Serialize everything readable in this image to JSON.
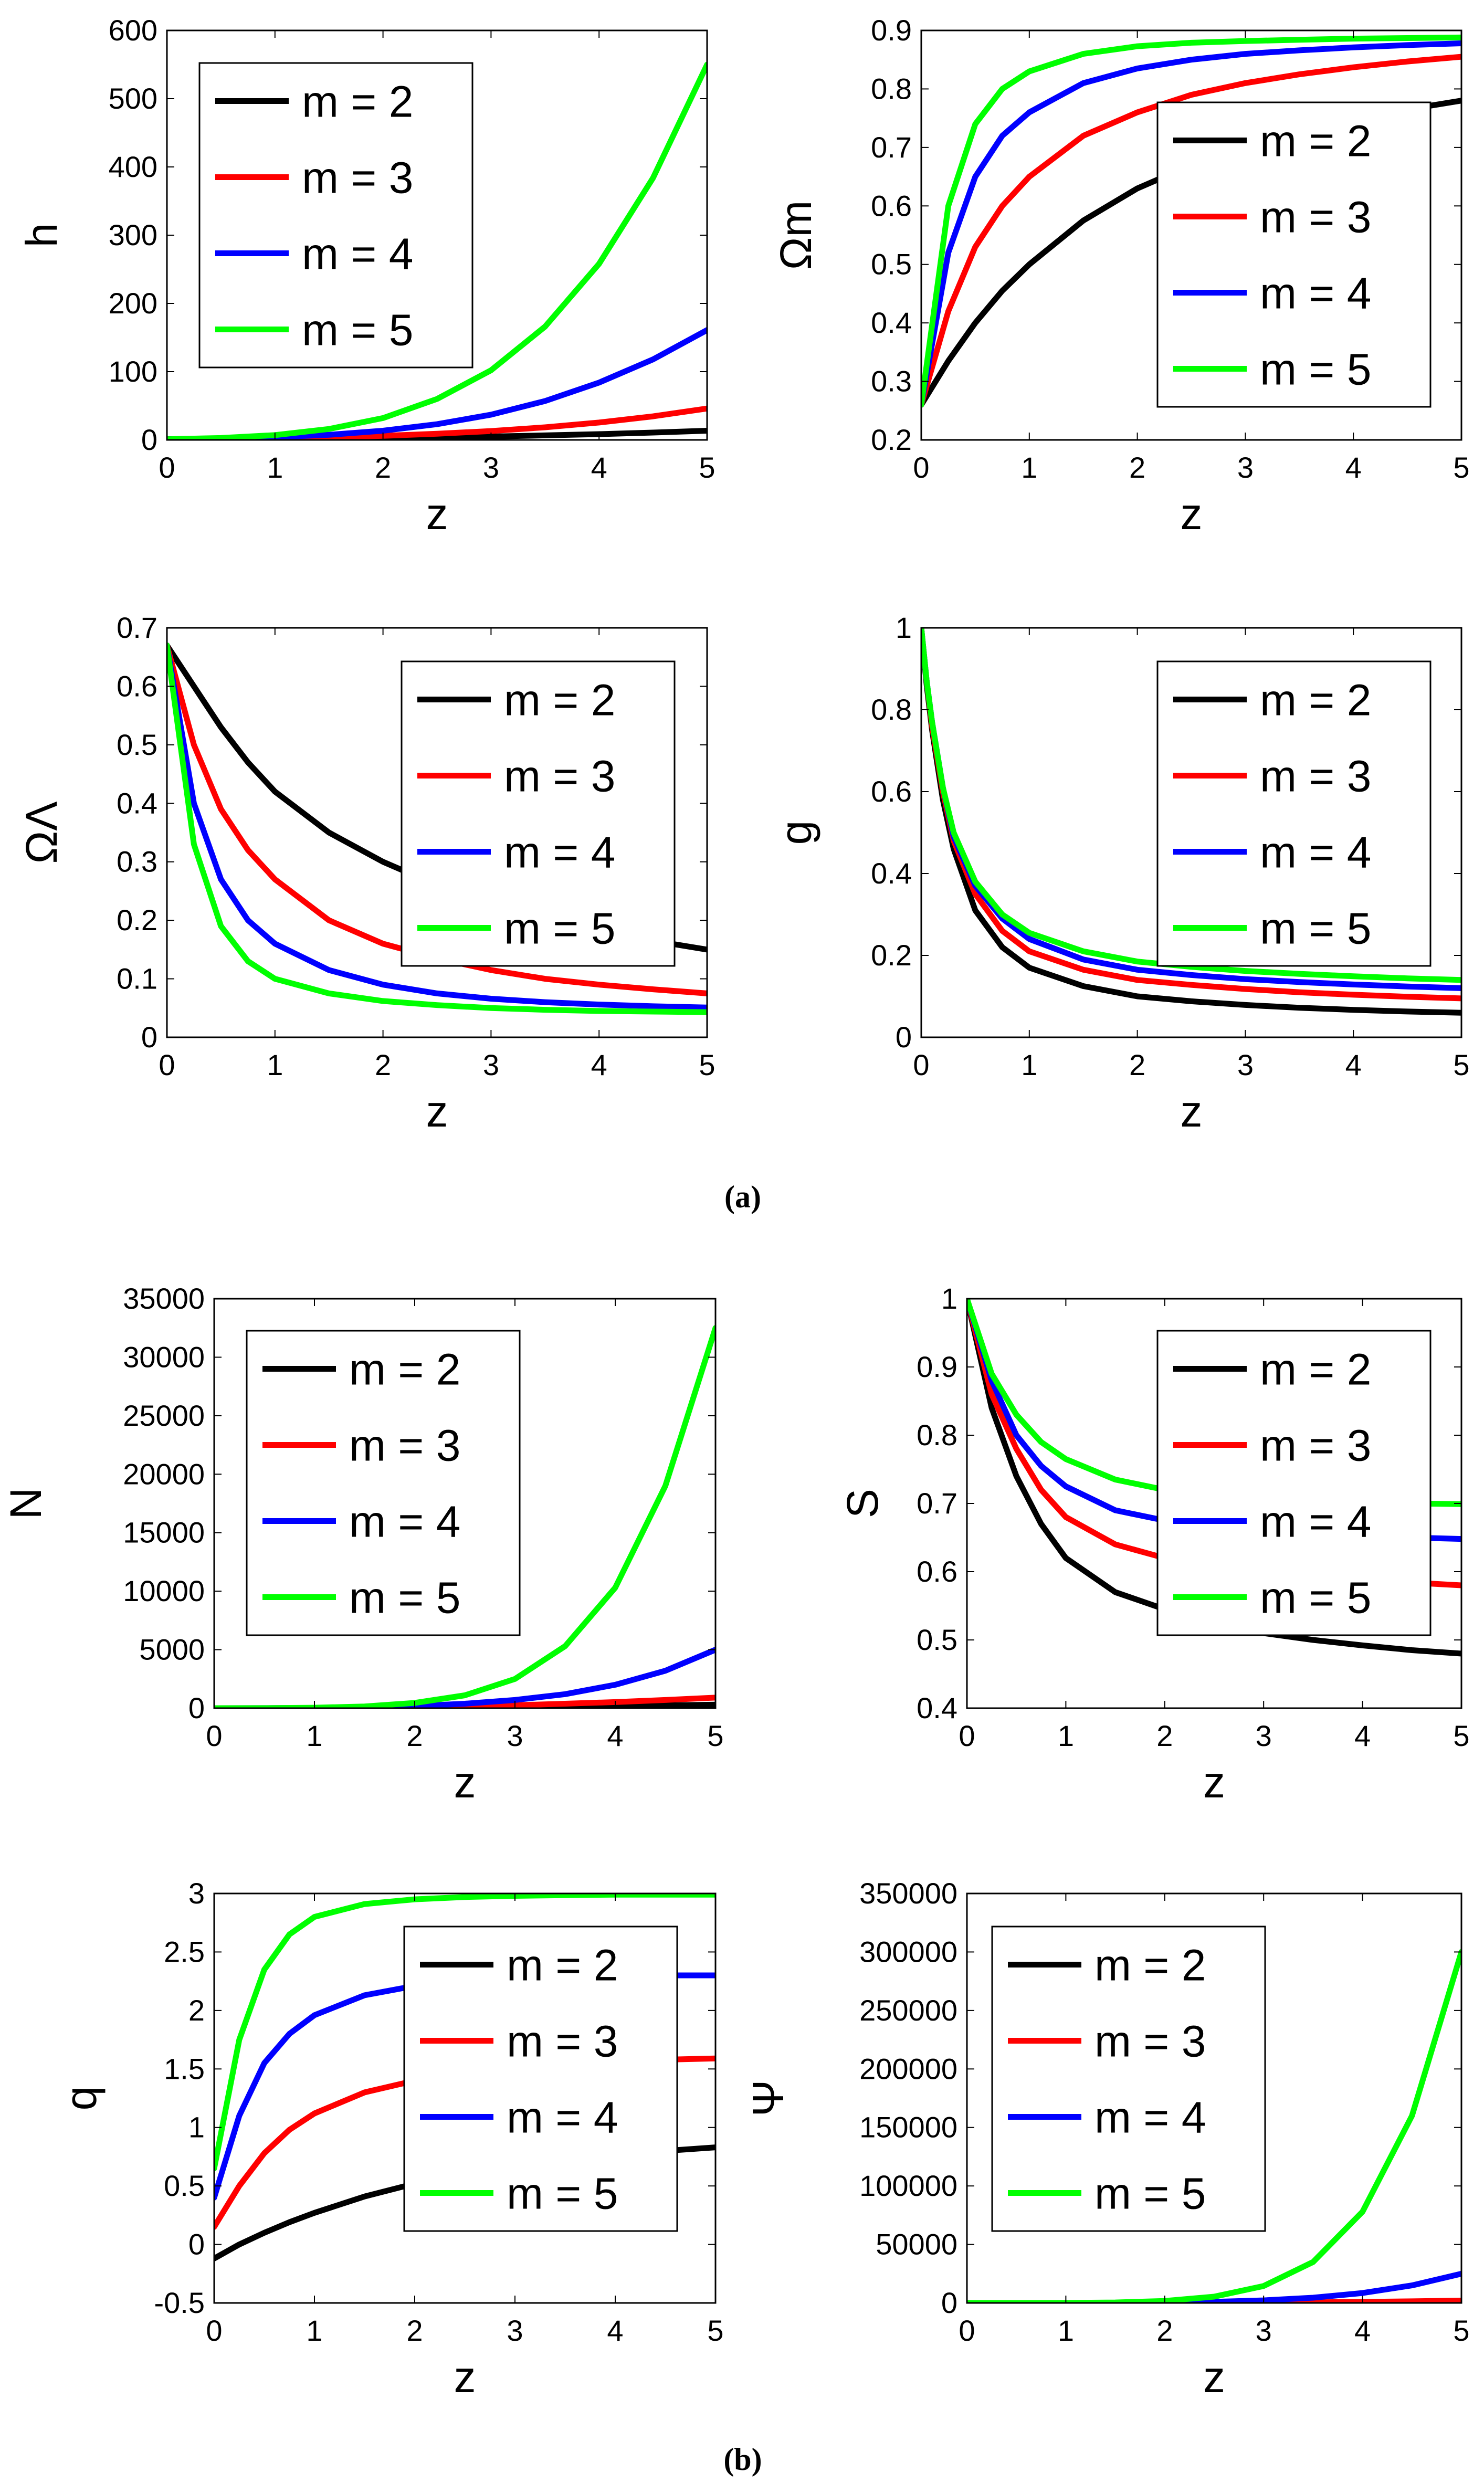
{
  "figure": {
    "panel_a_caption": "(a)",
    "panel_b_caption": "(b)"
  },
  "series_colors": {
    "m = 2": "#000000",
    "m = 3": "#ff0000",
    "m = 4": "#0000ff",
    "m = 5": "#00ff00"
  },
  "chart_data": [
    {
      "id": "h",
      "type": "line",
      "panel": "a",
      "ylabel": "h",
      "xlabel": "z",
      "xlim": [
        0,
        5
      ],
      "ylim": [
        0,
        600
      ],
      "xticks": [
        0,
        1,
        2,
        3,
        4,
        5
      ],
      "yticks": [
        0,
        100,
        200,
        300,
        400,
        500,
        600
      ],
      "legend_position": "top-left",
      "x": [
        0,
        0.5,
        1,
        1.5,
        2,
        2.5,
        3,
        3.5,
        4,
        4.5,
        5
      ],
      "series": [
        {
          "name": "m = 2",
          "values": [
            1,
            1.2,
            1.5,
            2,
            2.8,
            3.8,
            5,
            6.6,
            8.5,
            10.8,
            13.5
          ]
        },
        {
          "name": "m = 3",
          "values": [
            1,
            1.5,
            2.4,
            3.8,
            6,
            9,
            13,
            18.5,
            25.5,
            34.5,
            46
          ]
        },
        {
          "name": "m = 4",
          "values": [
            1,
            2,
            4,
            7.5,
            13.5,
            23,
            37,
            57,
            84,
            118,
            161
          ]
        },
        {
          "name": "m = 5",
          "values": [
            1,
            2.8,
            7,
            16,
            32,
            60,
            102,
            166,
            258,
            384,
            550
          ]
        }
      ]
    },
    {
      "id": "omega_m",
      "type": "line",
      "panel": "a",
      "ylabel": "Ωm",
      "xlabel": "z",
      "xlim": [
        0,
        5
      ],
      "ylim": [
        0.2,
        0.9
      ],
      "xticks": [
        0,
        1,
        2,
        3,
        4,
        5
      ],
      "yticks": [
        0.2,
        0.3,
        0.4,
        0.5,
        0.6,
        0.7,
        0.8,
        0.9
      ],
      "legend_position": "bottom-right",
      "x": [
        0,
        0.25,
        0.5,
        0.75,
        1,
        1.5,
        2,
        2.5,
        3,
        3.5,
        4,
        4.5,
        5
      ],
      "series": [
        {
          "name": "m = 2",
          "values": [
            0.26,
            0.335,
            0.4,
            0.455,
            0.5,
            0.575,
            0.63,
            0.67,
            0.7,
            0.725,
            0.745,
            0.765,
            0.78
          ]
        },
        {
          "name": "m = 3",
          "values": [
            0.26,
            0.42,
            0.53,
            0.6,
            0.65,
            0.72,
            0.76,
            0.79,
            0.81,
            0.825,
            0.837,
            0.847,
            0.855
          ]
        },
        {
          "name": "m = 4",
          "values": [
            0.26,
            0.52,
            0.65,
            0.72,
            0.76,
            0.81,
            0.835,
            0.85,
            0.86,
            0.866,
            0.871,
            0.875,
            0.878
          ]
        },
        {
          "name": "m = 5",
          "values": [
            0.26,
            0.6,
            0.74,
            0.8,
            0.83,
            0.86,
            0.873,
            0.879,
            0.882,
            0.884,
            0.886,
            0.887,
            0.888
          ]
        }
      ]
    },
    {
      "id": "omega_lambda",
      "type": "line",
      "panel": "a",
      "ylabel": "ΩΛ",
      "xlabel": "z",
      "xlim": [
        0,
        5
      ],
      "ylim": [
        0,
        0.7
      ],
      "xticks": [
        0,
        1,
        2,
        3,
        4,
        5
      ],
      "yticks": [
        0,
        0.1,
        0.2,
        0.3,
        0.4,
        0.5,
        0.6,
        0.7
      ],
      "legend_position": "top-right",
      "x": [
        0,
        0.25,
        0.5,
        0.75,
        1,
        1.5,
        2,
        2.5,
        3,
        3.5,
        4,
        4.5,
        5
      ],
      "series": [
        {
          "name": "m = 2",
          "values": [
            0.67,
            0.6,
            0.53,
            0.47,
            0.42,
            0.35,
            0.3,
            0.26,
            0.23,
            0.205,
            0.185,
            0.165,
            0.15
          ]
        },
        {
          "name": "m = 3",
          "values": [
            0.67,
            0.5,
            0.39,
            0.32,
            0.27,
            0.2,
            0.16,
            0.135,
            0.115,
            0.1,
            0.09,
            0.082,
            0.075
          ]
        },
        {
          "name": "m = 4",
          "values": [
            0.67,
            0.4,
            0.27,
            0.2,
            0.16,
            0.115,
            0.09,
            0.075,
            0.066,
            0.06,
            0.056,
            0.053,
            0.051
          ]
        },
        {
          "name": "m = 5",
          "values": [
            0.67,
            0.33,
            0.19,
            0.13,
            0.1,
            0.075,
            0.062,
            0.055,
            0.05,
            0.047,
            0.045,
            0.044,
            0.043
          ]
        }
      ]
    },
    {
      "id": "g",
      "type": "line",
      "panel": "a",
      "ylabel": "g",
      "xlabel": "z",
      "xlim": [
        0,
        5
      ],
      "ylim": [
        0,
        1
      ],
      "xticks": [
        0,
        1,
        2,
        3,
        4,
        5
      ],
      "yticks": [
        0,
        0.2,
        0.4,
        0.6,
        0.8,
        1
      ],
      "legend_position": "top-right",
      "x": [
        0,
        0.05,
        0.1,
        0.2,
        0.3,
        0.5,
        0.75,
        1,
        1.5,
        2,
        2.5,
        3,
        3.5,
        4,
        4.5,
        5
      ],
      "series": [
        {
          "name": "m = 2",
          "values": [
            1,
            0.86,
            0.75,
            0.58,
            0.46,
            0.31,
            0.22,
            0.17,
            0.125,
            0.1,
            0.088,
            0.079,
            0.072,
            0.067,
            0.063,
            0.06
          ]
        },
        {
          "name": "m = 3",
          "values": [
            1,
            0.87,
            0.76,
            0.6,
            0.48,
            0.35,
            0.26,
            0.21,
            0.165,
            0.14,
            0.128,
            0.118,
            0.11,
            0.104,
            0.099,
            0.095
          ]
        },
        {
          "name": "m = 4",
          "values": [
            1,
            0.87,
            0.77,
            0.61,
            0.49,
            0.37,
            0.29,
            0.24,
            0.19,
            0.165,
            0.152,
            0.142,
            0.135,
            0.129,
            0.124,
            0.12
          ]
        },
        {
          "name": "m = 5",
          "values": [
            1,
            0.87,
            0.77,
            0.61,
            0.5,
            0.38,
            0.3,
            0.255,
            0.21,
            0.185,
            0.172,
            0.162,
            0.155,
            0.149,
            0.144,
            0.14
          ]
        }
      ]
    },
    {
      "id": "N",
      "type": "line",
      "panel": "b",
      "ylabel": "N",
      "xlabel": "z",
      "xlim": [
        0,
        5
      ],
      "ylim": [
        0,
        35000
      ],
      "xticks": [
        0,
        1,
        2,
        3,
        4,
        5
      ],
      "yticks": [
        0,
        5000,
        10000,
        15000,
        20000,
        25000,
        30000,
        35000
      ],
      "legend_position": "top-left",
      "x": [
        0,
        0.5,
        1,
        1.5,
        2,
        2.5,
        3,
        3.5,
        4,
        4.5,
        5
      ],
      "series": [
        {
          "name": "m = 2",
          "values": [
            0,
            1,
            5,
            15,
            30,
            55,
            90,
            130,
            180,
            240,
            300
          ]
        },
        {
          "name": "m = 3",
          "values": [
            0,
            2,
            10,
            30,
            70,
            140,
            250,
            380,
            520,
            700,
            900
          ]
        },
        {
          "name": "m = 4",
          "values": [
            0,
            3,
            20,
            70,
            180,
            380,
            700,
            1200,
            2000,
            3200,
            5000
          ]
        },
        {
          "name": "m = 5",
          "values": [
            0,
            5,
            40,
            150,
            450,
            1100,
            2500,
            5300,
            10300,
            19000,
            32500
          ]
        }
      ]
    },
    {
      "id": "S",
      "type": "line",
      "panel": "b",
      "ylabel": "S",
      "xlabel": "z",
      "xlim": [
        0,
        5
      ],
      "ylim": [
        0.4,
        1
      ],
      "xticks": [
        0,
        1,
        2,
        3,
        4,
        5
      ],
      "yticks": [
        0.4,
        0.5,
        0.6,
        0.7,
        0.8,
        0.9,
        1
      ],
      "legend_position": "top-right",
      "x": [
        0,
        0.25,
        0.5,
        0.75,
        1,
        1.5,
        2,
        2.5,
        3,
        3.5,
        4,
        4.5,
        5
      ],
      "series": [
        {
          "name": "m = 2",
          "values": [
            1,
            0.84,
            0.74,
            0.67,
            0.62,
            0.57,
            0.545,
            0.525,
            0.51,
            0.5,
            0.492,
            0.485,
            0.48
          ]
        },
        {
          "name": "m = 3",
          "values": [
            1,
            0.86,
            0.78,
            0.72,
            0.68,
            0.64,
            0.62,
            0.605,
            0.598,
            0.592,
            0.588,
            0.584,
            0.58
          ]
        },
        {
          "name": "m = 4",
          "values": [
            1,
            0.88,
            0.8,
            0.755,
            0.725,
            0.69,
            0.675,
            0.666,
            0.66,
            0.656,
            0.653,
            0.65,
            0.648
          ]
        },
        {
          "name": "m = 5",
          "values": [
            1,
            0.89,
            0.83,
            0.79,
            0.765,
            0.735,
            0.72,
            0.712,
            0.707,
            0.704,
            0.702,
            0.7,
            0.699
          ]
        }
      ]
    },
    {
      "id": "q",
      "type": "line",
      "panel": "b",
      "ylabel": "q",
      "xlabel": "z",
      "xlim": [
        0,
        5
      ],
      "ylim": [
        -0.5,
        3
      ],
      "xticks": [
        0,
        1,
        2,
        3,
        4,
        5
      ],
      "yticks": [
        -0.5,
        0,
        0.5,
        1,
        1.5,
        2,
        2.5,
        3
      ],
      "legend_position": "top-right",
      "x": [
        0,
        0.25,
        0.5,
        0.75,
        1,
        1.5,
        2,
        2.5,
        3,
        3.5,
        4,
        4.5,
        5
      ],
      "series": [
        {
          "name": "m = 2",
          "values": [
            -0.12,
            0.0,
            0.1,
            0.19,
            0.27,
            0.41,
            0.52,
            0.6,
            0.67,
            0.72,
            0.76,
            0.8,
            0.83
          ]
        },
        {
          "name": "m = 3",
          "values": [
            0.15,
            0.5,
            0.78,
            0.98,
            1.12,
            1.3,
            1.4,
            1.46,
            1.51,
            1.54,
            1.56,
            1.58,
            1.59
          ]
        },
        {
          "name": "m = 4",
          "values": [
            0.4,
            1.1,
            1.55,
            1.8,
            1.96,
            2.13,
            2.21,
            2.25,
            2.27,
            2.28,
            2.29,
            2.3,
            2.3
          ]
        },
        {
          "name": "m = 5",
          "values": [
            0.65,
            1.75,
            2.35,
            2.65,
            2.8,
            2.91,
            2.95,
            2.97,
            2.98,
            2.985,
            2.99,
            2.99,
            2.99
          ]
        }
      ]
    },
    {
      "id": "psi",
      "type": "line",
      "panel": "b",
      "ylabel": "Ψ",
      "xlabel": "z",
      "xlim": [
        0,
        5
      ],
      "ylim": [
        0,
        350000
      ],
      "xticks": [
        0,
        1,
        2,
        3,
        4,
        5
      ],
      "yticks": [
        0,
        50000,
        100000,
        150000,
        200000,
        250000,
        300000,
        350000
      ],
      "legend_position": "top-left",
      "x": [
        0,
        0.5,
        1,
        1.5,
        2,
        2.5,
        3,
        3.5,
        4,
        4.5,
        5
      ],
      "series": [
        {
          "name": "m = 2",
          "values": [
            0,
            0,
            1,
            3,
            8,
            15,
            25,
            40,
            60,
            90,
            120
          ]
        },
        {
          "name": "m = 3",
          "values": [
            0,
            1,
            5,
            20,
            60,
            150,
            300,
            550,
            900,
            1400,
            2000
          ]
        },
        {
          "name": "m = 4",
          "values": [
            0,
            2,
            20,
            100,
            350,
            950,
            2200,
            4500,
            8500,
            15000,
            25000
          ]
        },
        {
          "name": "m = 5",
          "values": [
            0,
            5,
            60,
            400,
            1700,
            5400,
            14500,
            35000,
            78000,
            160000,
            300000
          ]
        }
      ]
    }
  ]
}
